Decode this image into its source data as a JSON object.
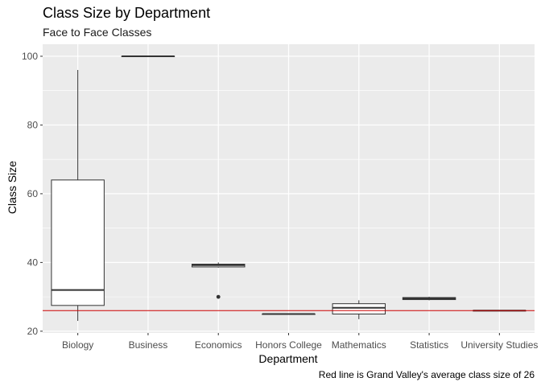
{
  "chart_data": {
    "type": "boxplot",
    "title": "Class Size by Department",
    "subtitle": "Face to Face Classes",
    "xlabel": "Department",
    "ylabel": "Class Size",
    "caption": "Red line is Grand Valley's average class size of 26",
    "ylim": [
      19.5,
      103.5
    ],
    "yticks": [
      20,
      40,
      60,
      80,
      100
    ],
    "reference_line": {
      "y": 26,
      "color": "#cc0000"
    },
    "grid": true,
    "colors": {
      "panel": "#ebebeb",
      "grid": "#ffffff",
      "box_fill": "#ffffff",
      "box_stroke": "#333333"
    },
    "categories": [
      "Biology",
      "Business",
      "Economics",
      "Honors College",
      "Mathematics",
      "Statistics",
      "University Studies"
    ],
    "boxes": [
      {
        "category": "Biology",
        "min": 23,
        "q1": 27.5,
        "median": 32,
        "q3": 64,
        "max": 96,
        "outliers": []
      },
      {
        "category": "Business",
        "min": 100,
        "q1": 100,
        "median": 100,
        "q3": 100,
        "max": 100,
        "outliers": []
      },
      {
        "category": "Economics",
        "min": 38.5,
        "q1": 38.7,
        "median": 39.2,
        "q3": 39.5,
        "max": 40,
        "outliers": [
          30
        ]
      },
      {
        "category": "Honors College",
        "min": 25,
        "q1": 25,
        "median": 25,
        "q3": 25,
        "max": 25,
        "outliers": []
      },
      {
        "category": "Mathematics",
        "min": 23.5,
        "q1": 25,
        "median": 26.8,
        "q3": 28,
        "max": 29,
        "outliers": []
      },
      {
        "category": "Statistics",
        "min": 29,
        "q1": 29.2,
        "median": 29.5,
        "q3": 29.8,
        "max": 30,
        "outliers": []
      },
      {
        "category": "University Studies",
        "min": 26,
        "q1": 26,
        "median": 26,
        "q3": 26,
        "max": 26,
        "outliers": []
      }
    ]
  }
}
